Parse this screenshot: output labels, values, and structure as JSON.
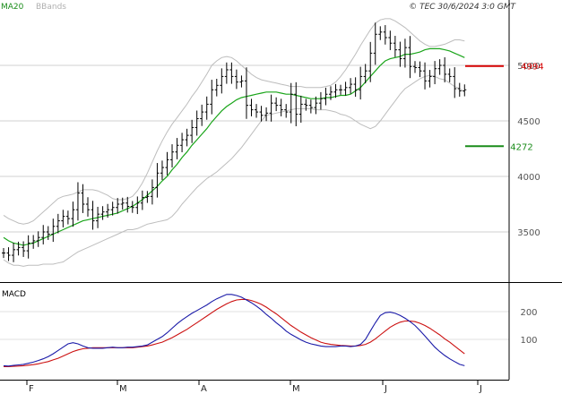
{
  "chart_data": {
    "type": "line",
    "legend": {
      "ma_label": "MA20",
      "bb_label": "BBands",
      "placement": "top-left"
    },
    "copyright": "© TEC 30/6/2024 3:0 GMT",
    "price_axis": {
      "ticks": [
        3500,
        4000,
        4500,
        5000
      ],
      "ylim": [
        3150,
        5500
      ]
    },
    "months": [
      "F",
      "M",
      "A",
      "M",
      "J",
      "J"
    ],
    "levels": [
      {
        "value": 4994,
        "label": "4994",
        "color": "#d40000"
      },
      {
        "value": 4272,
        "label": "4272",
        "color": "#1a8c1a"
      }
    ],
    "ohlc_close": [
      3310,
      3290,
      3340,
      3360,
      3330,
      3400,
      3420,
      3450,
      3500,
      3480,
      3550,
      3600,
      3640,
      3620,
      3700,
      3850,
      3750,
      3700,
      3600,
      3660,
      3680,
      3700,
      3720,
      3750,
      3760,
      3730,
      3720,
      3760,
      3810,
      3820,
      3900,
      4030,
      4080,
      4150,
      4220,
      4280,
      4330,
      4370,
      4440,
      4520,
      4580,
      4650,
      4780,
      4820,
      4900,
      4960,
      4900,
      4850,
      4860,
      4640,
      4600,
      4580,
      4550,
      4570,
      4660,
      4640,
      4600,
      4580,
      4740,
      4560,
      4650,
      4640,
      4620,
      4660,
      4700,
      4740,
      4760,
      4780,
      4780,
      4800,
      4830,
      4780,
      4900,
      4950,
      5110,
      5280,
      5300,
      5250,
      5200,
      5140,
      5060,
      5160,
      4990,
      4980,
      4950,
      4860,
      4900,
      4970,
      5000,
      4920,
      4900,
      4790,
      4770,
      4780
    ],
    "ma20": [
      3450,
      3420,
      3400,
      3390,
      3380,
      3390,
      3400,
      3420,
      3440,
      3460,
      3480,
      3500,
      3520,
      3540,
      3560,
      3580,
      3600,
      3610,
      3620,
      3630,
      3640,
      3650,
      3660,
      3670,
      3690,
      3710,
      3730,
      3760,
      3790,
      3830,
      3870,
      3910,
      3960,
      4000,
      4060,
      4110,
      4170,
      4220,
      4280,
      4330,
      4380,
      4430,
      4490,
      4540,
      4590,
      4630,
      4660,
      4690,
      4710,
      4720,
      4730,
      4740,
      4750,
      4760,
      4760,
      4760,
      4750,
      4740,
      4740,
      4730,
      4720,
      4710,
      4700,
      4700,
      4700,
      4710,
      4710,
      4720,
      4730,
      4730,
      4740,
      4770,
      4800,
      4850,
      4900,
      4950,
      5000,
      5040,
      5060,
      5070,
      5080,
      5100,
      5100,
      5110,
      5120,
      5140,
      5150,
      5150,
      5150,
      5140,
      5130,
      5110,
      5090,
      5070
    ],
    "bb_upper": [
      3650,
      3620,
      3600,
      3580,
      3570,
      3580,
      3600,
      3640,
      3680,
      3720,
      3760,
      3800,
      3820,
      3830,
      3840,
      3860,
      3880,
      3880,
      3880,
      3870,
      3850,
      3830,
      3800,
      3790,
      3790,
      3800,
      3820,
      3870,
      3940,
      4030,
      4130,
      4230,
      4320,
      4400,
      4470,
      4530,
      4590,
      4650,
      4720,
      4780,
      4850,
      4920,
      5000,
      5040,
      5070,
      5080,
      5070,
      5040,
      5000,
      4960,
      4920,
      4890,
      4870,
      4860,
      4850,
      4840,
      4830,
      4820,
      4810,
      4810,
      4810,
      4800,
      4800,
      4800,
      4800,
      4810,
      4820,
      4850,
      4900,
      4960,
      5030,
      5100,
      5180,
      5250,
      5320,
      5380,
      5410,
      5420,
      5420,
      5400,
      5370,
      5340,
      5300,
      5260,
      5220,
      5190,
      5170,
      5170,
      5180,
      5190,
      5210,
      5230,
      5230,
      5220
    ],
    "bb_lower": [
      3250,
      3220,
      3200,
      3200,
      3190,
      3200,
      3200,
      3200,
      3210,
      3210,
      3210,
      3220,
      3230,
      3260,
      3290,
      3320,
      3340,
      3360,
      3380,
      3400,
      3420,
      3440,
      3460,
      3480,
      3500,
      3520,
      3520,
      3530,
      3550,
      3570,
      3580,
      3590,
      3600,
      3610,
      3640,
      3690,
      3750,
      3800,
      3850,
      3900,
      3940,
      3980,
      4010,
      4040,
      4080,
      4120,
      4160,
      4210,
      4260,
      4320,
      4380,
      4440,
      4500,
      4550,
      4560,
      4570,
      4580,
      4590,
      4600,
      4610,
      4610,
      4610,
      4610,
      4600,
      4600,
      4600,
      4590,
      4580,
      4560,
      4550,
      4530,
      4500,
      4470,
      4450,
      4430,
      4450,
      4500,
      4560,
      4620,
      4680,
      4740,
      4790,
      4820,
      4850,
      4880,
      4900,
      4910,
      4900,
      4880,
      4870,
      4840,
      4810,
      4790,
      4760
    ],
    "macd_axis": {
      "ticks": [
        100,
        200
      ],
      "ylim": [
        -30,
        290
      ]
    },
    "macd": [
      5,
      4,
      6,
      8,
      10,
      14,
      18,
      24,
      30,
      38,
      48,
      60,
      72,
      84,
      88,
      84,
      76,
      70,
      68,
      68,
      68,
      70,
      72,
      70,
      70,
      72,
      72,
      74,
      76,
      80,
      90,
      100,
      110,
      124,
      140,
      156,
      170,
      182,
      194,
      204,
      214,
      224,
      236,
      246,
      254,
      262,
      262,
      258,
      252,
      242,
      232,
      220,
      206,
      190,
      176,
      160,
      146,
      130,
      118,
      108,
      98,
      90,
      84,
      80,
      76,
      74,
      74,
      74,
      76,
      76,
      74,
      76,
      82,
      100,
      130,
      160,
      186,
      196,
      198,
      194,
      186,
      176,
      164,
      150,
      132,
      112,
      92,
      72,
      56,
      42,
      30,
      20,
      10,
      5
    ],
    "macd_signal": [
      2,
      2,
      3,
      4,
      5,
      7,
      9,
      12,
      16,
      20,
      26,
      32,
      40,
      48,
      56,
      62,
      66,
      68,
      70,
      70,
      70,
      70,
      70,
      70,
      70,
      70,
      70,
      72,
      74,
      76,
      80,
      85,
      90,
      98,
      106,
      116,
      126,
      136,
      148,
      160,
      172,
      184,
      196,
      208,
      218,
      228,
      236,
      242,
      244,
      244,
      240,
      234,
      226,
      216,
      204,
      192,
      178,
      164,
      150,
      138,
      126,
      116,
      106,
      98,
      90,
      85,
      82,
      80,
      78,
      77,
      76,
      76,
      78,
      82,
      90,
      102,
      116,
      130,
      144,
      154,
      162,
      166,
      166,
      164,
      158,
      150,
      140,
      128,
      116,
      102,
      90,
      76,
      62,
      48
    ]
  }
}
